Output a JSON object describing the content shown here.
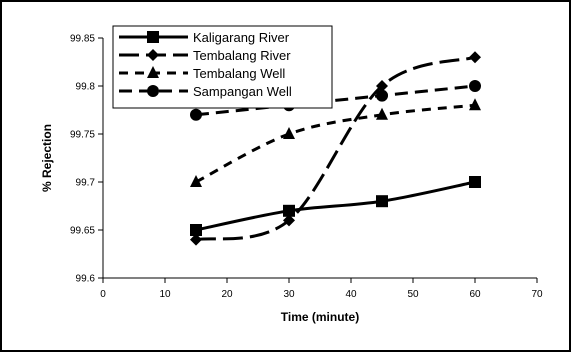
{
  "chart_data": {
    "type": "line",
    "title": "",
    "xlabel": "Time (minute)",
    "ylabel": "% Rejection",
    "xlim": [
      0,
      70
    ],
    "ylim": [
      99.6,
      99.85
    ],
    "xticks": [
      "0",
      "10",
      "20",
      "30",
      "40",
      "50",
      "60",
      "70"
    ],
    "yticks": [
      "99.6",
      "99.65",
      "99.7",
      "99.75",
      "99.8",
      "99.85"
    ],
    "grid": false,
    "legend_position": "top-left",
    "series": [
      {
        "name": "Kaligarang River",
        "marker": "square",
        "dash": "solid",
        "x": [
          15,
          30,
          45,
          60
        ],
        "values": [
          99.65,
          99.67,
          99.68,
          99.7
        ]
      },
      {
        "name": "Tembalang River",
        "marker": "diamond",
        "dash": "long-dash",
        "x": [
          15,
          30,
          45,
          60
        ],
        "values": [
          99.64,
          99.66,
          99.8,
          99.83
        ]
      },
      {
        "name": "Tembalang Well",
        "marker": "triangle",
        "dash": "short-dash",
        "x": [
          15,
          30,
          45,
          60
        ],
        "values": [
          99.7,
          99.75,
          99.77,
          99.78
        ]
      },
      {
        "name": "Sampangan Well",
        "marker": "circle",
        "dash": "dash",
        "x": [
          15,
          30,
          45,
          60
        ],
        "values": [
          99.77,
          99.78,
          99.79,
          99.8
        ]
      }
    ]
  }
}
